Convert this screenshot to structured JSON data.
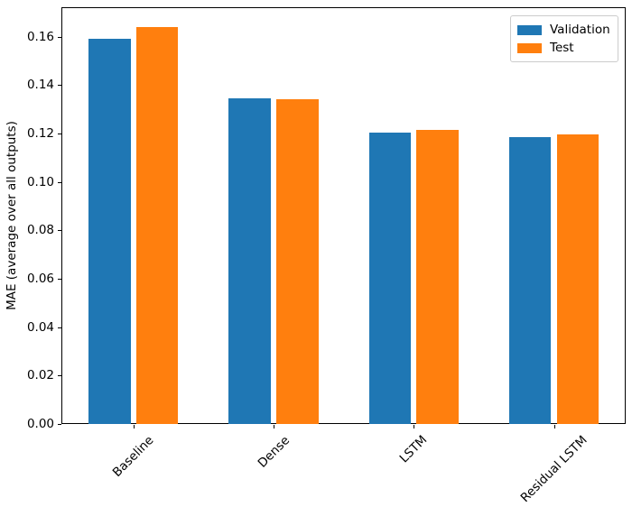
{
  "chart_data": {
    "type": "bar",
    "title": "",
    "categories": [
      "Baseline",
      "Dense",
      "LSTM",
      "Residual LSTM"
    ],
    "series": [
      {
        "name": "Validation",
        "color": "#1f77b4",
        "values": [
          0.159,
          0.1345,
          0.1205,
          0.1185
        ]
      },
      {
        "name": "Test",
        "color": "#ff7f0e",
        "values": [
          0.164,
          0.134,
          0.1215,
          0.1195
        ]
      }
    ],
    "xlabel": "",
    "ylabel": "MAE (average over all outputs)",
    "ylim": [
      0,
      0.1722
    ],
    "yticks": [
      0.0,
      0.02,
      0.04,
      0.06,
      0.08,
      0.1,
      0.12,
      0.14,
      0.16
    ],
    "ytick_labels": [
      "0.00",
      "0.02",
      "0.04",
      "0.06",
      "0.08",
      "0.10",
      "0.12",
      "0.14",
      "0.16"
    ],
    "xtick_rotation_deg": 45,
    "grid": false,
    "legend_position": "upper right",
    "bar_width_ratio": 0.3,
    "group_offset_ratio": 0.17
  }
}
